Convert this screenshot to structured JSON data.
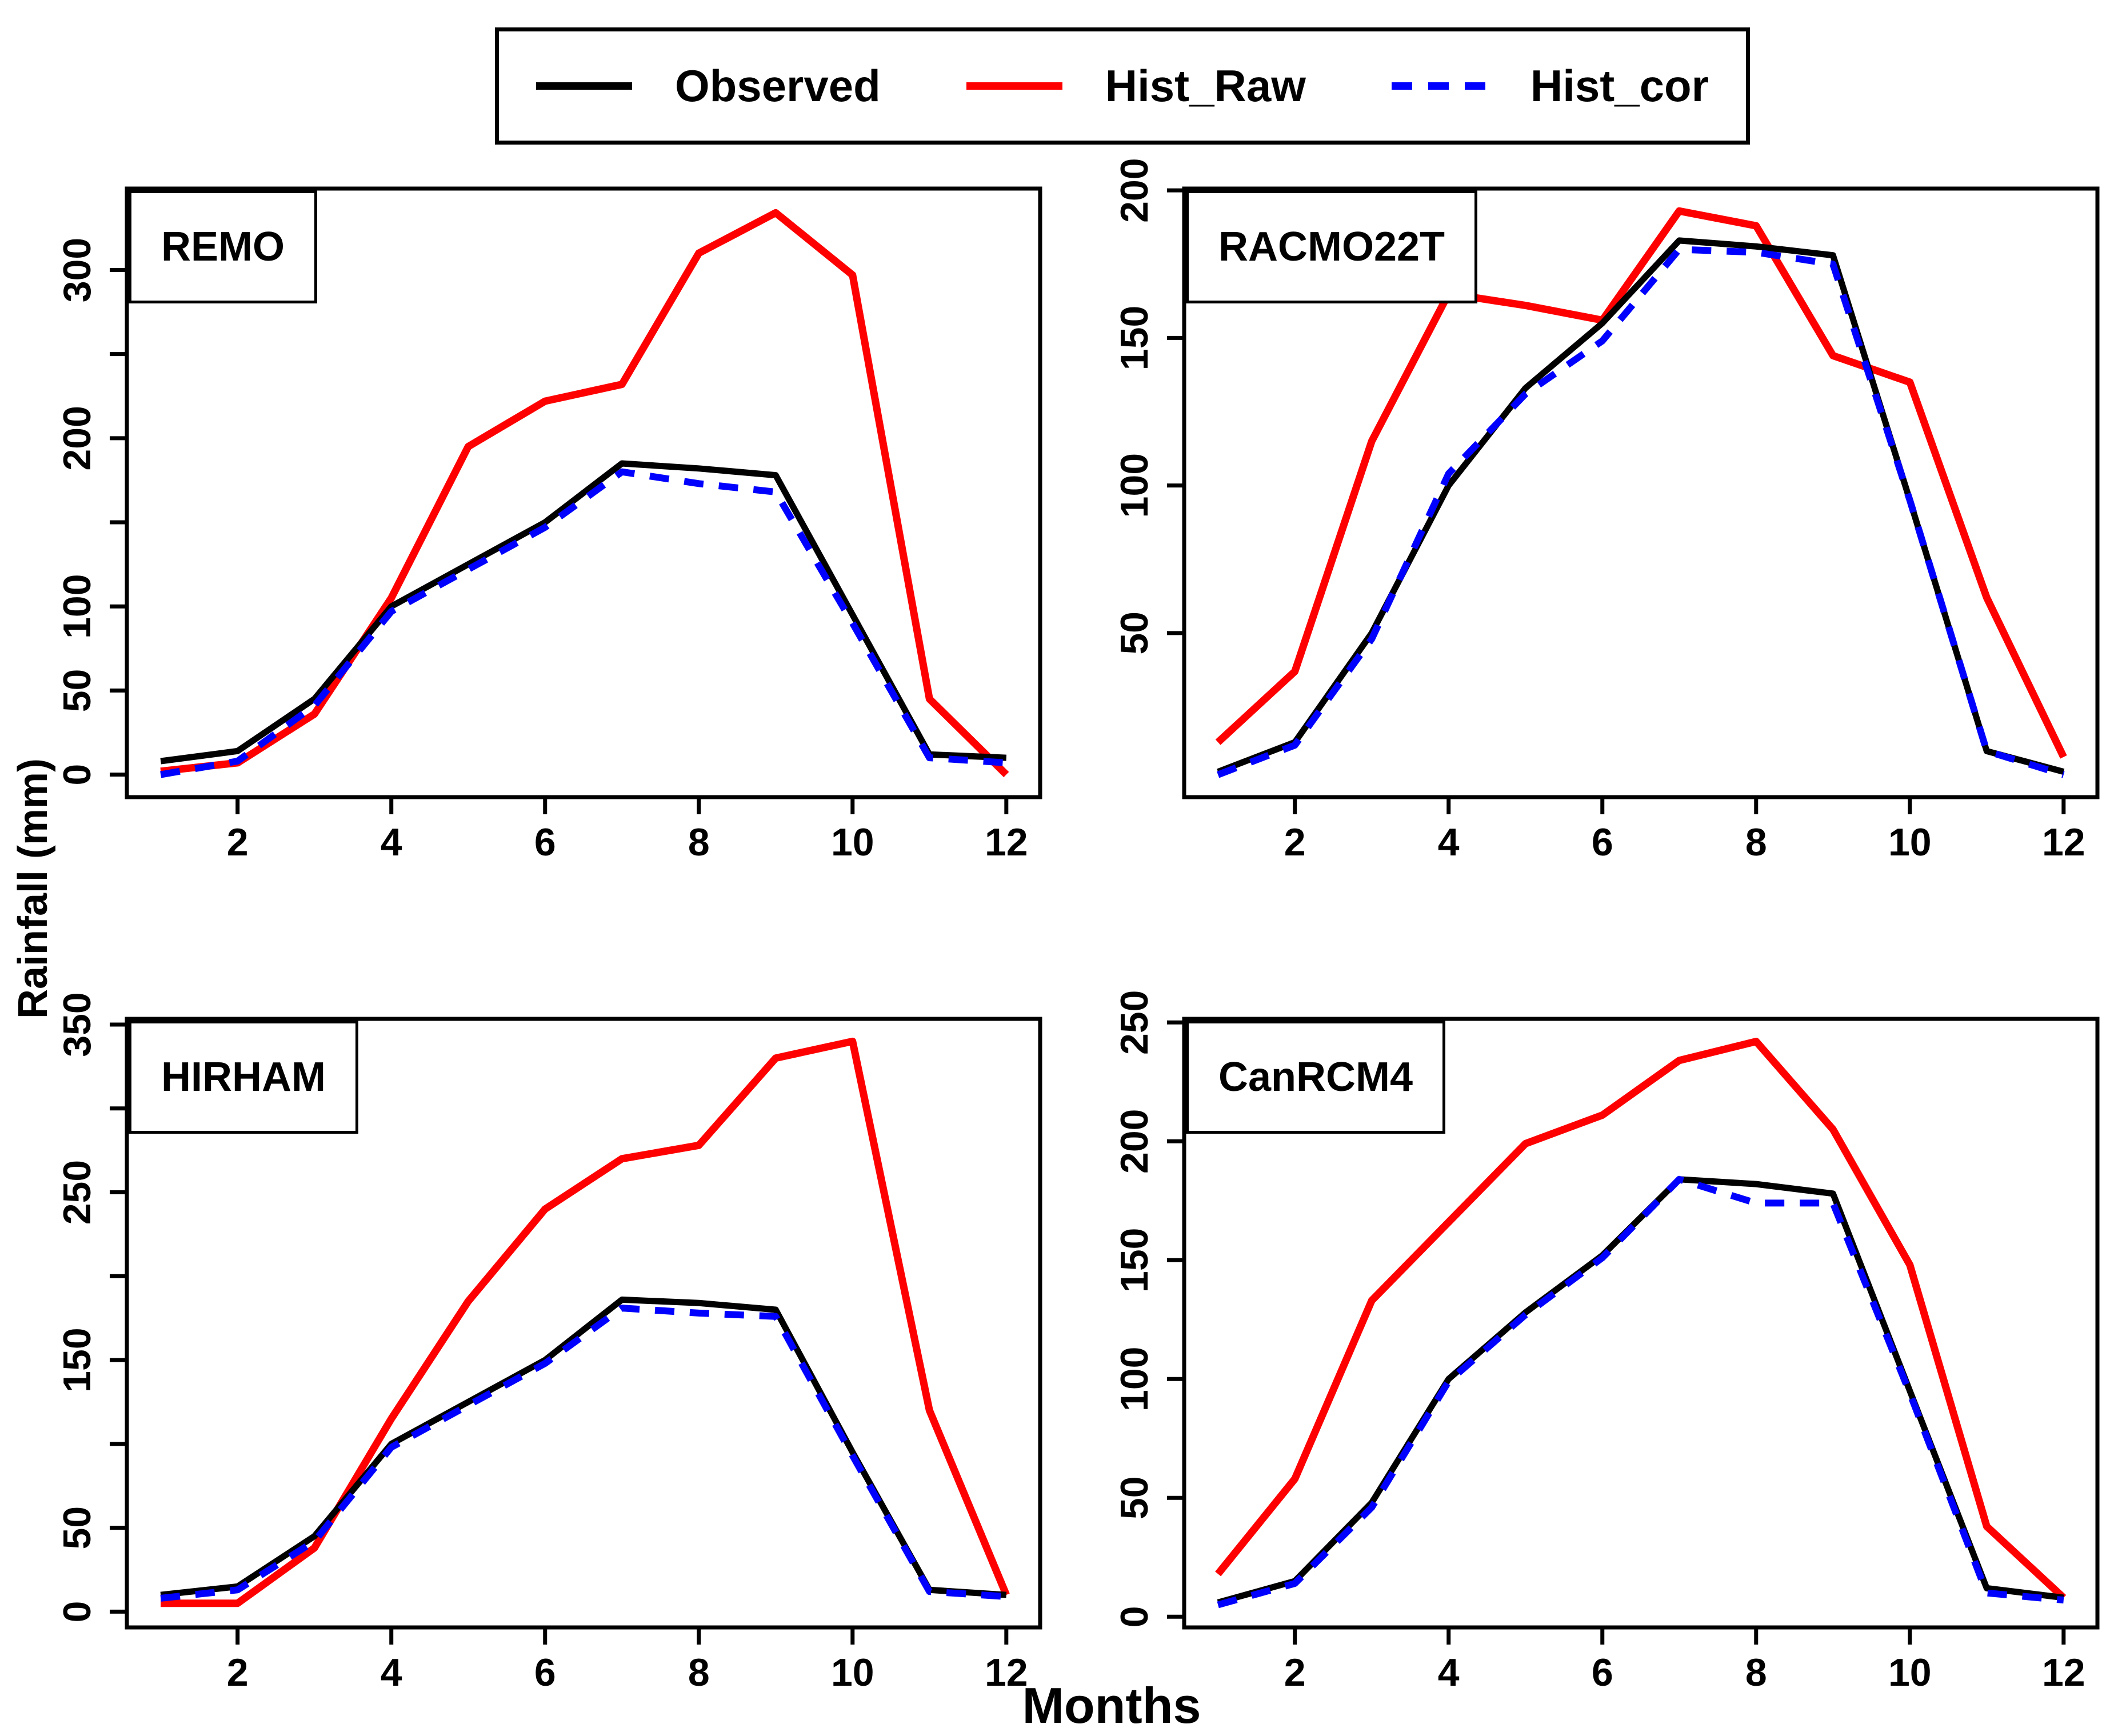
{
  "figure": {
    "background": "#ffffff"
  },
  "axes": {
    "x_label": "Months",
    "y_label": "Rainfall (mm)"
  },
  "legend": {
    "items": [
      {
        "label": "Observed",
        "color": "#000000",
        "style": "solid"
      },
      {
        "label": "Hist_Raw",
        "color": "#ff0000",
        "style": "solid"
      },
      {
        "label": "Hist_cor",
        "color": "#0000ff",
        "style": "dashed"
      }
    ]
  },
  "colors": {
    "observed": "#000000",
    "hist_raw": "#ff0000",
    "hist_cor": "#0000ff"
  },
  "chart_data": [
    {
      "type": "line",
      "title": "REMO",
      "x": [
        1,
        2,
        3,
        4,
        5,
        6,
        7,
        8,
        9,
        10,
        11,
        12
      ],
      "x_ticks": [
        2,
        4,
        6,
        8,
        10,
        12
      ],
      "x_tick_labels": [
        "2",
        "4",
        "6",
        "8",
        "10",
        "12"
      ],
      "xlim": [
        0.56,
        12.44
      ],
      "y_ticks": [
        0,
        50,
        100,
        150,
        200,
        250,
        300
      ],
      "y_tick_labels": [
        "0",
        "50",
        "100",
        "",
        "200",
        "",
        "300"
      ],
      "ylim": [
        -13.4,
        348.4
      ],
      "series": [
        {
          "name": "Hist_Raw",
          "color": "#ff0000",
          "dash": false,
          "values": [
            2,
            7,
            36,
            105,
            195,
            222,
            232,
            310,
            334,
            297,
            45,
            0
          ]
        },
        {
          "name": "Observed",
          "color": "#000000",
          "dash": false,
          "values": [
            8,
            14,
            45,
            100,
            125,
            150,
            185,
            182,
            178,
            95,
            12,
            10
          ]
        },
        {
          "name": "Hist_cor",
          "color": "#0000ff",
          "dash": true,
          "values": [
            0,
            8,
            41,
            97,
            122,
            147,
            180,
            173,
            168,
            90,
            10,
            7
          ]
        }
      ]
    },
    {
      "type": "line",
      "title": "RACMO22T",
      "x": [
        1,
        2,
        3,
        4,
        5,
        6,
        7,
        8,
        9,
        10,
        11,
        12
      ],
      "x_ticks": [
        2,
        4,
        6,
        8,
        10,
        12
      ],
      "x_tick_labels": [
        "2",
        "4",
        "6",
        "8",
        "10",
        "12"
      ],
      "xlim": [
        0.56,
        12.44
      ],
      "y_ticks": [
        50,
        100,
        150,
        200
      ],
      "y_tick_labels": [
        "50",
        "100",
        "150",
        "200"
      ],
      "ylim": [
        -5.6,
        200.6
      ],
      "series": [
        {
          "name": "Hist_Raw",
          "color": "#ff0000",
          "dash": false,
          "values": [
            13,
            37,
            115,
            165,
            161,
            156,
            193,
            188,
            144,
            135,
            62,
            8
          ]
        },
        {
          "name": "Observed",
          "color": "#000000",
          "dash": false,
          "values": [
            3,
            13,
            50,
            100,
            133,
            155,
            183,
            181,
            178,
            95,
            10,
            3
          ]
        },
        {
          "name": "Hist_cor",
          "color": "#0000ff",
          "dash": true,
          "values": [
            2,
            12,
            48,
            104,
            131,
            149,
            180,
            179,
            175,
            95,
            10,
            2
          ]
        }
      ]
    },
    {
      "type": "line",
      "title": "HIRHAM",
      "x": [
        1,
        2,
        3,
        4,
        5,
        6,
        7,
        8,
        9,
        10,
        11,
        12
      ],
      "x_ticks": [
        2,
        4,
        6,
        8,
        10,
        12
      ],
      "x_tick_labels": [
        "2",
        "4",
        "6",
        "8",
        "10",
        "12"
      ],
      "xlim": [
        0.56,
        12.44
      ],
      "y_ticks": [
        0,
        50,
        100,
        150,
        200,
        250,
        300,
        350
      ],
      "y_tick_labels": [
        "0",
        "50",
        "",
        "150",
        "",
        "250",
        "",
        "350"
      ],
      "ylim": [
        -9.4,
        353.4
      ],
      "series": [
        {
          "name": "Hist_Raw",
          "color": "#ff0000",
          "dash": false,
          "values": [
            5,
            5,
            38,
            115,
            185,
            240,
            270,
            278,
            330,
            340,
            120,
            10
          ]
        },
        {
          "name": "Observed",
          "color": "#000000",
          "dash": false,
          "values": [
            10,
            15,
            45,
            100,
            125,
            150,
            186,
            184,
            180,
            95,
            13,
            10
          ]
        },
        {
          "name": "Hist_cor",
          "color": "#0000ff",
          "dash": true,
          "values": [
            8,
            13,
            42,
            98,
            123,
            148,
            181,
            178,
            176,
            93,
            12,
            9
          ]
        }
      ]
    },
    {
      "type": "line",
      "title": "CanRCM4",
      "x": [
        1,
        2,
        3,
        4,
        5,
        6,
        7,
        8,
        9,
        10,
        11,
        12
      ],
      "x_ticks": [
        2,
        4,
        6,
        8,
        10,
        12
      ],
      "x_tick_labels": [
        "2",
        "4",
        "6",
        "8",
        "10",
        "12"
      ],
      "xlim": [
        0.56,
        12.44
      ],
      "y_ticks": [
        0,
        50,
        100,
        150,
        200,
        250
      ],
      "y_tick_labels": [
        "0",
        "50",
        "100",
        "150",
        "200",
        "250"
      ],
      "ylim": [
        -4.5,
        251.5
      ],
      "series": [
        {
          "name": "Hist_Raw",
          "color": "#ff0000",
          "dash": false,
          "values": [
            18,
            58,
            133,
            166,
            199,
            211,
            234,
            242,
            205,
            148,
            38,
            8
          ]
        },
        {
          "name": "Observed",
          "color": "#000000",
          "dash": false,
          "values": [
            6,
            15,
            48,
            100,
            128,
            152,
            184,
            182,
            178,
            95,
            12,
            8
          ]
        },
        {
          "name": "Hist_cor",
          "color": "#0000ff",
          "dash": true,
          "values": [
            5,
            14,
            46,
            99,
            127,
            151,
            184,
            174,
            174,
            94,
            10,
            7
          ]
        }
      ]
    }
  ]
}
